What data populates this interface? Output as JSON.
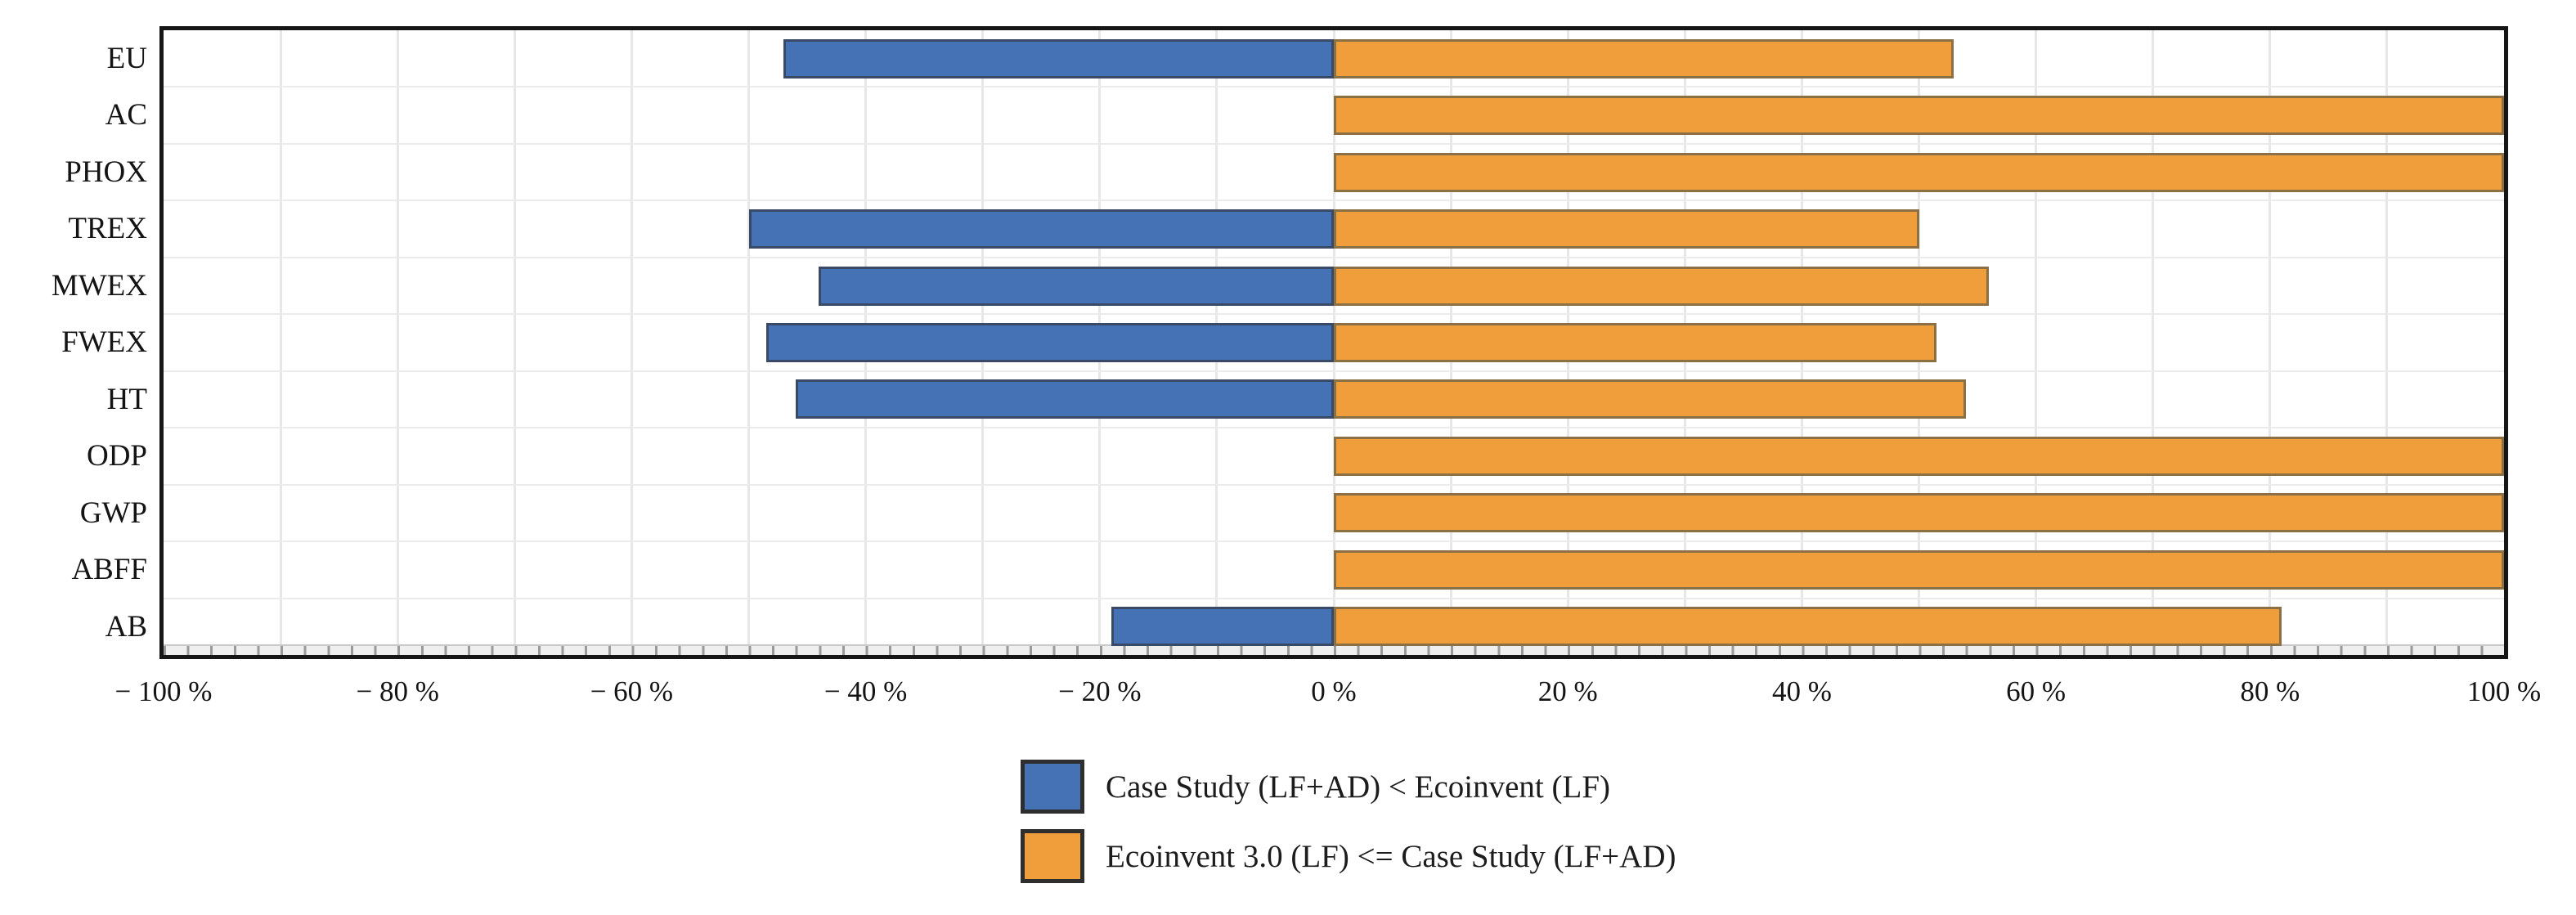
{
  "figure": {
    "background": "#ffffff",
    "grid_color": "#e8e8e8",
    "frame_color": "#161616"
  },
  "chart_data": {
    "type": "bar",
    "orientation": "horizontal-diverging",
    "title": "",
    "xlabel": "",
    "ylabel": "",
    "categories": [
      "EU",
      "AC",
      "PHOX",
      "TREX",
      "MWEX",
      "FWEX",
      "HT",
      "ODP",
      "GWP",
      "ABFF",
      "AB"
    ],
    "series": [
      {
        "name": "Case Study (LF+AD) < Ecoinvent (LF)",
        "color": "#4472b5",
        "border_color": "#3a4a66",
        "values": [
          -47,
          0,
          0,
          -50,
          -44,
          -48.5,
          -46,
          0,
          0,
          0,
          -19
        ]
      },
      {
        "name": "Ecoinvent 3.0 (LF) <= Case Study (LF+AD)",
        "color": "#f09d3c",
        "border_color": "#8c7045",
        "values": [
          53,
          100,
          100,
          50,
          56,
          51.5,
          54,
          100,
          100,
          100,
          81
        ]
      }
    ],
    "xlim": [
      -100,
      100
    ],
    "x_tick_labels": [
      "− 100 %",
      "− 80 %",
      "− 60 %",
      "− 40 %",
      "− 20 %",
      "0 %",
      "20 %",
      "40 %",
      "60 %",
      "80 %",
      "100 %"
    ],
    "x_major_step_pct": 20,
    "x_grid_step_pct": 10,
    "x_minor_tick_step_pct": 2,
    "grid": true,
    "legend_position": "bottom-center"
  }
}
